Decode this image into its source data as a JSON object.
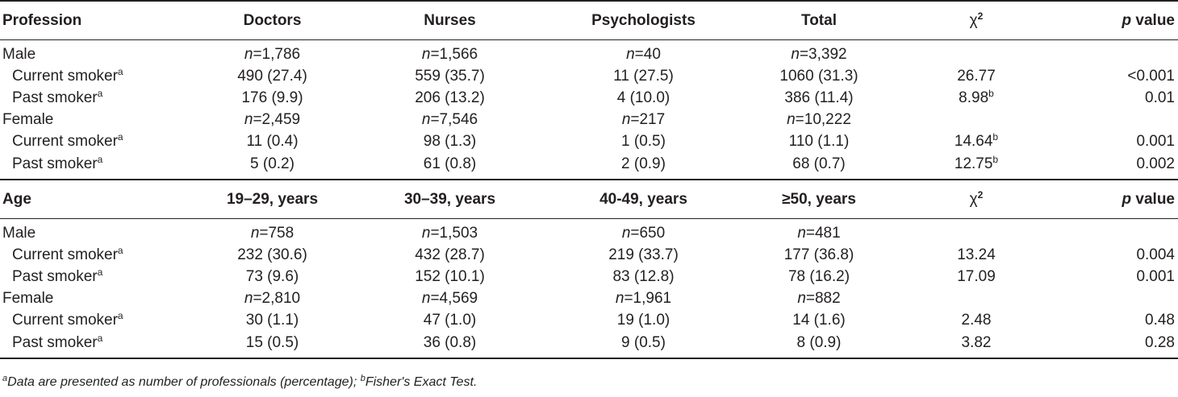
{
  "sections": [
    {
      "header": [
        "Profession",
        "Doctors",
        "Nurses",
        "Psychologists",
        "Total",
        "χ",
        "p value"
      ],
      "chi_sup": "2",
      "groups": [
        {
          "label": "Male",
          "n_prefix": "n",
          "n": [
            "=1,786",
            "=1,566",
            "=40",
            "=3,392"
          ],
          "rows": [
            {
              "label": "Current smoker",
              "label_sup": "a",
              "cells": [
                "490 (27.4)",
                "559 (35.7)",
                "11 (27.5)",
                "1060 (31.3)"
              ],
              "chi": "26.77",
              "chi_sup": "",
              "p": "<0.001"
            },
            {
              "label": "Past smoker",
              "label_sup": "a",
              "cells": [
                "176 (9.9)",
                "206 (13.2)",
                "4 (10.0)",
                "386 (11.4)"
              ],
              "chi": "8.98",
              "chi_sup": "b",
              "p": "0.01"
            }
          ]
        },
        {
          "label": "Female",
          "n_prefix": "n",
          "n": [
            "=2,459",
            "=7,546",
            "=217",
            "=10,222"
          ],
          "rows": [
            {
              "label": "Current smoker",
              "label_sup": "a",
              "cells": [
                "11 (0.4)",
                "98 (1.3)",
                "1 (0.5)",
                "110 (1.1)"
              ],
              "chi": "14.64",
              "chi_sup": "b",
              "p": "0.001"
            },
            {
              "label": "Past smoker",
              "label_sup": "a",
              "cells": [
                "5 (0.2)",
                "61 (0.8)",
                "2 (0.9)",
                "68 (0.7)"
              ],
              "chi": "12.75",
              "chi_sup": "b",
              "p": "0.002"
            }
          ]
        }
      ]
    },
    {
      "header": [
        "Age",
        "19–29, years",
        "30–39, years",
        "40-49, years",
        "≥50, years",
        "χ",
        "p value"
      ],
      "chi_sup": "2",
      "groups": [
        {
          "label": "Male",
          "n_prefix": "n",
          "n": [
            "=758",
            "=1,503",
            "=650",
            "=481"
          ],
          "rows": [
            {
              "label": "Current smoker",
              "label_sup": "a",
              "cells": [
                "232 (30.6)",
                "432 (28.7)",
                "219 (33.7)",
                "177 (36.8)"
              ],
              "chi": "13.24",
              "chi_sup": "",
              "p": "0.004"
            },
            {
              "label": "Past smoker",
              "label_sup": "a",
              "cells": [
                "73 (9.6)",
                "152 (10.1)",
                "83 (12.8)",
                "78 (16.2)"
              ],
              "chi": "17.09",
              "chi_sup": "",
              "p": "0.001"
            }
          ]
        },
        {
          "label": "Female",
          "n_prefix": "n",
          "n": [
            "=2,810",
            "=4,569",
            "=1,961",
            "=882"
          ],
          "rows": [
            {
              "label": "Current smoker",
              "label_sup": "a",
              "cells": [
                "30 (1.1)",
                "47 (1.0)",
                "19 (1.0)",
                "14 (1.6)"
              ],
              "chi": "2.48",
              "chi_sup": "",
              "p": "0.48"
            },
            {
              "label": "Past smoker",
              "label_sup": "a",
              "cells": [
                "15 (0.5)",
                "36 (0.8)",
                "9 (0.5)",
                "8 (0.9)"
              ],
              "chi": "3.82",
              "chi_sup": "",
              "p": "0.28"
            }
          ]
        }
      ]
    }
  ],
  "footnote": {
    "marker_a": "a",
    "text_a": "Data are presented as number of professionals (percentage); ",
    "marker_b": "b",
    "text_b": "Fisher's Exact Test."
  }
}
